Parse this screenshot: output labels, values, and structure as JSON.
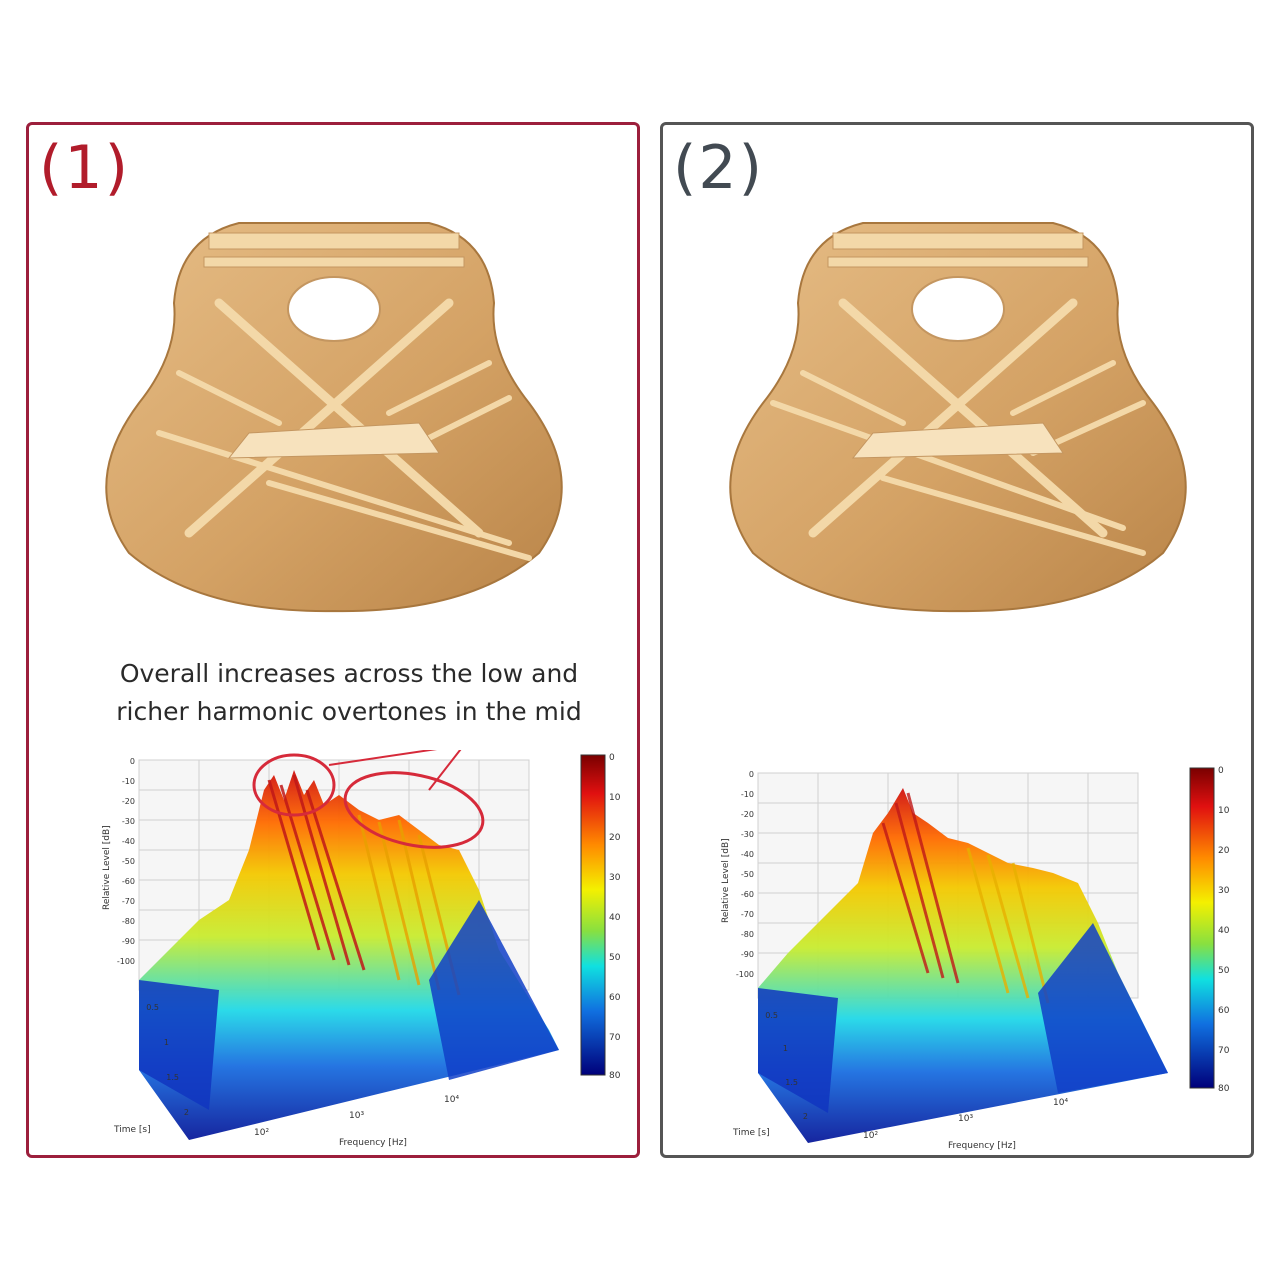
{
  "panels": [
    {
      "label": "(1)",
      "annotation": {
        "line1": "Overall increases across the low and",
        "line2": "richer harmonic overtones in the mid"
      },
      "spectrogram": {
        "ylabel": "Relative Level [dB]",
        "xlabel": "Frequency [Hz]",
        "zlabel": "Time [s]",
        "y_ticks": [
          "0",
          "-10",
          "-20",
          "-30",
          "-40",
          "-50",
          "-60",
          "-70",
          "-80",
          "-90",
          "-100"
        ],
        "time_ticks": [
          "0.5",
          "1",
          "1.5",
          "2"
        ],
        "freq_ticks": [
          "10²",
          "10³",
          "10⁴"
        ],
        "colorbar_ticks": [
          "0",
          "10",
          "20",
          "30",
          "40",
          "50",
          "60",
          "70",
          "80"
        ]
      }
    },
    {
      "label": "(2)",
      "spectrogram": {
        "ylabel": "Relative Level [dB]",
        "xlabel": "Frequency [Hz]",
        "zlabel": "Time [s]",
        "y_ticks": [
          "0",
          "-10",
          "-20",
          "-30",
          "-40",
          "-50",
          "-60",
          "-70",
          "-80",
          "-90",
          "-100"
        ],
        "time_ticks": [
          "0.5",
          "1",
          "1.5",
          "2"
        ],
        "freq_ticks": [
          "10²",
          "10³",
          "10⁴"
        ],
        "colorbar_ticks": [
          "0",
          "10",
          "20",
          "30",
          "40",
          "50",
          "60",
          "70",
          "80"
        ]
      }
    }
  ],
  "colors": {
    "panel1_border": "#9c1f3c",
    "panel2_border": "#555555",
    "wood": "#d7a56a",
    "brace": "#f3d8a8",
    "highlight": "#d62a3a"
  }
}
